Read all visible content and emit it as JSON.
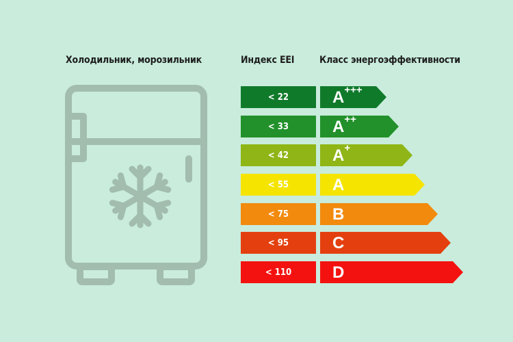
{
  "headers": {
    "appliance": "Холодильник, морозильник",
    "index": "Индекс EEI",
    "class": "Класс энергоэффективности"
  },
  "icon": "fridge-with-snowflake-icon",
  "colors": {
    "background": "#c9ecdc",
    "icon": "#a2bdae"
  },
  "rows": [
    {
      "index": "< 22",
      "class": "A",
      "plus": "+++",
      "color": "#107a2b"
    },
    {
      "index": "< 33",
      "class": "A",
      "plus": "++",
      "color": "#22912b"
    },
    {
      "index": "< 42",
      "class": "A",
      "plus": "+",
      "color": "#8fb516"
    },
    {
      "index": "< 55",
      "class": "A",
      "plus": "",
      "color": "#f5e400"
    },
    {
      "index": "< 75",
      "class": "B",
      "plus": "",
      "color": "#f28a0d"
    },
    {
      "index": "< 95",
      "class": "C",
      "plus": "",
      "color": "#e4400f"
    },
    {
      "index": "< 110",
      "class": "D",
      "plus": "",
      "color": "#f41210"
    }
  ]
}
